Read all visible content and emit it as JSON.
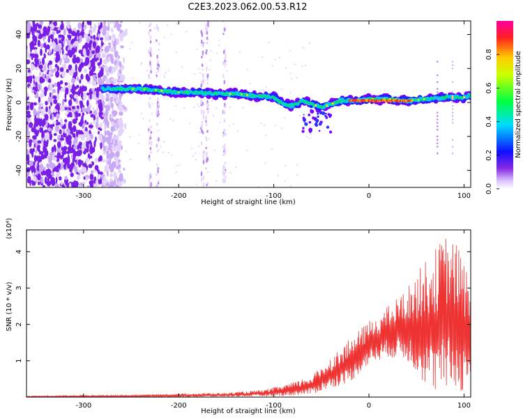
{
  "title": "C2E3.2023.062.00.53.R12",
  "chart_data": [
    {
      "type": "heatmap",
      "xlabel": "Height of straight line (km)",
      "ylabel": "Frequency (Hz)",
      "xlim": [
        -360,
        107
      ],
      "ylim": [
        -50,
        48
      ],
      "xticks": [
        -300,
        -200,
        -100,
        0,
        100
      ],
      "yticks": [
        -40,
        -20,
        0,
        20,
        40
      ],
      "ridge": {
        "x": [
          -280,
          -260,
          -240,
          -220,
          -200,
          -180,
          -160,
          -140,
          -120,
          -100,
          -90,
          -80,
          -70,
          -60,
          -50,
          -40,
          -30,
          -20,
          -10,
          0,
          20,
          40,
          60,
          80,
          100,
          107
        ],
        "y": [
          8,
          8,
          8,
          7,
          6,
          6,
          5,
          5,
          4,
          3,
          -1,
          -2,
          1,
          -1,
          -3,
          -1,
          1,
          1,
          1,
          2,
          2,
          1,
          2,
          3,
          3,
          4
        ]
      },
      "peak_band": {
        "x_range": [
          -20,
          45
        ],
        "y": 1
      }
    },
    {
      "type": "colorbar",
      "label": "Normalized spectral amplitude",
      "range": [
        0,
        1
      ],
      "ticks": [
        "0.0",
        "0.2",
        "0.4",
        "0.6",
        "0.8"
      ],
      "tick_values": [
        0.0,
        0.2,
        0.4,
        0.6,
        0.8
      ]
    },
    {
      "type": "line",
      "xlabel": "Height of straight line (km)",
      "ylabel": "SNR (10 * v/v)",
      "scale_label": "(x10⁴)",
      "xlim": [
        -360,
        107
      ],
      "ylim": [
        0,
        4.6
      ],
      "xticks": [
        -300,
        -200,
        -100,
        0,
        100
      ],
      "yticks": [
        1,
        2,
        3,
        4
      ],
      "color": "#ee3333",
      "envelope": {
        "x": [
          -360,
          -250,
          -200,
          -150,
          -110,
          -80,
          -60,
          -40,
          -20,
          0,
          20,
          40,
          60,
          70,
          80,
          90,
          100,
          107
        ],
        "upper": [
          0.03,
          0.06,
          0.1,
          0.12,
          0.2,
          0.4,
          0.6,
          1.1,
          1.6,
          2.1,
          2.5,
          3.0,
          3.8,
          4.1,
          4.5,
          4.3,
          3.9,
          3.0
        ],
        "lower": [
          0.0,
          0.0,
          0.0,
          0.01,
          0.02,
          0.04,
          0.08,
          0.25,
          0.4,
          0.9,
          1.1,
          1.0,
          0.3,
          0.1,
          0.15,
          0.2,
          0.1,
          0.5
        ]
      }
    }
  ]
}
